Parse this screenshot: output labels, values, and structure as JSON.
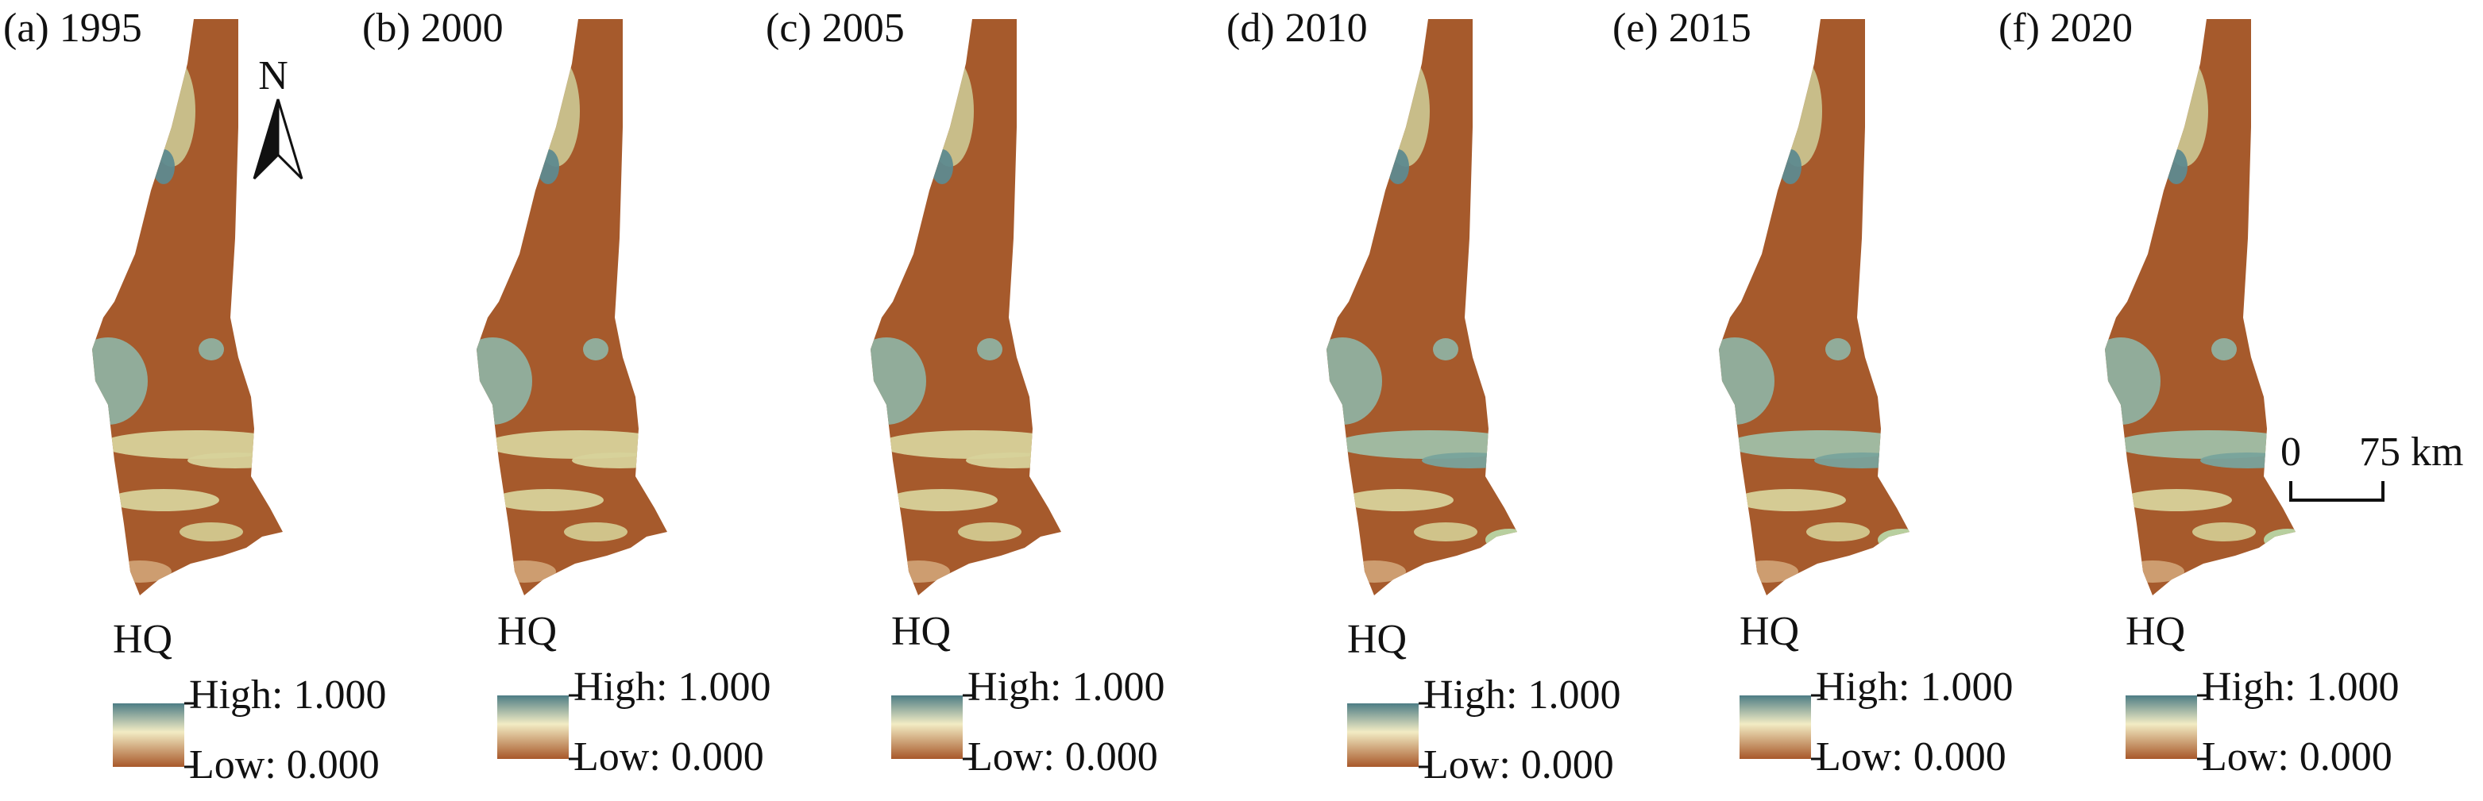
{
  "panels": [
    {
      "label": "(a) 1995",
      "legend": {
        "title": "HQ",
        "high": "High: 1.000",
        "low": "Low: 0.000"
      }
    },
    {
      "label": "(b) 2000",
      "legend": {
        "title": "HQ",
        "high": "High: 1.000",
        "low": "Low: 0.000"
      }
    },
    {
      "label": "(c) 2005",
      "legend": {
        "title": "HQ",
        "high": "High: 1.000",
        "low": "Low: 0.000"
      }
    },
    {
      "label": "(d) 2010",
      "legend": {
        "title": "HQ",
        "high": "High: 1.000",
        "low": "Low: 0.000"
      }
    },
    {
      "label": "(e) 2015",
      "legend": {
        "title": "HQ",
        "high": "High: 1.000",
        "low": "Low: 0.000"
      }
    },
    {
      "label": "(f) 2020",
      "legend": {
        "title": "HQ",
        "high": "High: 1.000",
        "low": "Low: 0.000"
      }
    }
  ],
  "north_arrow": {
    "label": "N"
  },
  "scale_bar": {
    "start": "0",
    "end": "75 km"
  }
}
